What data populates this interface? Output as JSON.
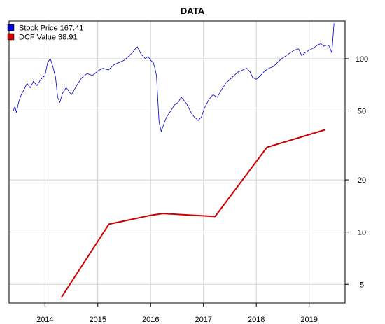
{
  "chart_data": {
    "type": "line",
    "title": "DATA",
    "xlabel": "",
    "ylabel": "",
    "y_scale": "log",
    "y_axis_side": "right",
    "grid": true,
    "legend_position": "top-left",
    "xlim": [
      2013.32,
      2019.68
    ],
    "ylim": [
      3.9,
      165
    ],
    "x_ticks": [
      {
        "value": 2014,
        "label": "2014"
      },
      {
        "value": 2015,
        "label": "2015"
      },
      {
        "value": 2016,
        "label": "2016"
      },
      {
        "value": 2017,
        "label": "2017"
      },
      {
        "value": 2018,
        "label": "2018"
      },
      {
        "value": 2019,
        "label": "2019"
      }
    ],
    "y_ticks": [
      {
        "value": 5,
        "label": "5"
      },
      {
        "value": 10,
        "label": "10"
      },
      {
        "value": 20,
        "label": "20"
      },
      {
        "value": 50,
        "label": "50"
      },
      {
        "value": 100,
        "label": "100"
      }
    ],
    "series": [
      {
        "name": "Stock Price",
        "legend_label": "Stock Price 167.41",
        "color": "#0000cc",
        "line_width": 0.8,
        "x": [
          2013.4,
          2013.43,
          2013.46,
          2013.5,
          2013.55,
          2013.6,
          2013.66,
          2013.72,
          2013.78,
          2013.85,
          2013.92,
          2014.0,
          2014.05,
          2014.1,
          2014.15,
          2014.2,
          2014.24,
          2014.28,
          2014.33,
          2014.4,
          2014.5,
          2014.6,
          2014.7,
          2014.8,
          2014.9,
          2015.0,
          2015.1,
          2015.2,
          2015.3,
          2015.4,
          2015.5,
          2015.58,
          2015.65,
          2015.7,
          2015.75,
          2015.82,
          2015.9,
          2015.95,
          2016.0,
          2016.05,
          2016.08,
          2016.11,
          2016.14,
          2016.16,
          2016.2,
          2016.25,
          2016.3,
          2016.38,
          2016.45,
          2016.52,
          2016.58,
          2016.62,
          2016.68,
          2016.72,
          2016.78,
          2016.83,
          2016.9,
          2016.96,
          2017.02,
          2017.1,
          2017.18,
          2017.26,
          2017.34,
          2017.42,
          2017.5,
          2017.58,
          2017.66,
          2017.74,
          2017.82,
          2017.88,
          2017.93,
          2018.0,
          2018.08,
          2018.16,
          2018.24,
          2018.32,
          2018.4,
          2018.48,
          2018.56,
          2018.64,
          2018.72,
          2018.8,
          2018.86,
          2018.92,
          2019.0,
          2019.08,
          2019.16,
          2019.22,
          2019.28,
          2019.34,
          2019.38,
          2019.41,
          2019.43,
          2019.45,
          2019.47
        ],
        "y": [
          50,
          53,
          49,
          56,
          62,
          66,
          72,
          68,
          74,
          70,
          76,
          80,
          95,
          100,
          90,
          78,
          60,
          56,
          63,
          68,
          62,
          70,
          78,
          82,
          80,
          85,
          88,
          86,
          92,
          95,
          98,
          103,
          108,
          113,
          117,
          106,
          100,
          103,
          98,
          95,
          88,
          80,
          55,
          43,
          38,
          42,
          46,
          50,
          54,
          56,
          60,
          58,
          55,
          52,
          48,
          46,
          44,
          46,
          52,
          58,
          62,
          60,
          66,
          72,
          76,
          80,
          84,
          86,
          88,
          84,
          78,
          76,
          80,
          85,
          88,
          90,
          95,
          100,
          104,
          108,
          112,
          114,
          104,
          108,
          112,
          115,
          120,
          122,
          118,
          120,
          118,
          112,
          108,
          130,
          160
        ]
      },
      {
        "name": "DCF Value",
        "legend_label": "DCF Value  38.91",
        "color": "#cc0000",
        "line_width": 2,
        "x": [
          2014.31,
          2015.21,
          2016.0,
          2016.23,
          2017.22,
          2018.2,
          2019.3
        ],
        "y": [
          4.2,
          11.1,
          12.5,
          12.8,
          12.3,
          30.8,
          38.91
        ]
      }
    ]
  }
}
